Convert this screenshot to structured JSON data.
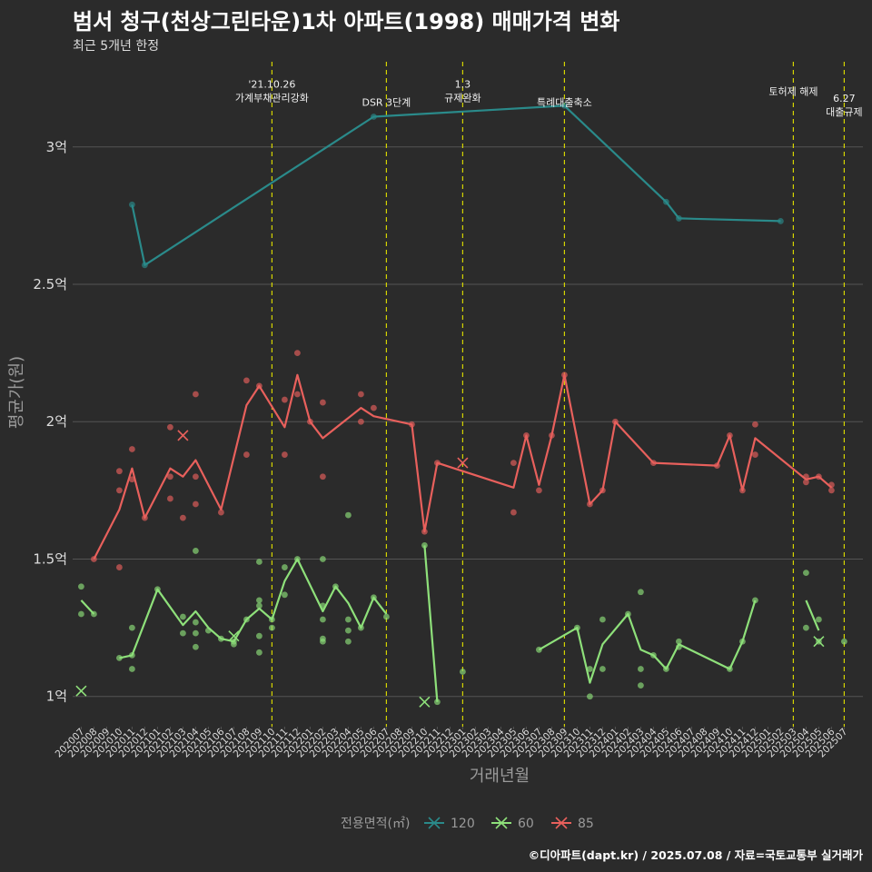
{
  "title": "범서 청구(천상그린타운)1차 아파트(1998) 매매가격 변화",
  "subtitle": "최근 5개년 한정",
  "caption": "©디아파트(dapt.kr) / 2025.07.08 / 자료=국토교통부 실거래가",
  "colors": {
    "background": "#2b2b2b",
    "grid": "#555555",
    "text": "#dddddd",
    "vline": "#d4d400",
    "s120": "#2a8a8a",
    "s60": "#8ee07a",
    "s85": "#e8605c"
  },
  "chart_data": {
    "type": "line",
    "xlabel": "거래년월",
    "ylabel": "평균가(원)",
    "categories": [
      "202007",
      "202008",
      "202009",
      "202010",
      "202011",
      "202012",
      "202101",
      "202102",
      "202103",
      "202104",
      "202105",
      "202106",
      "202107",
      "202108",
      "202109",
      "202110",
      "202111",
      "202112",
      "202201",
      "202202",
      "202203",
      "202204",
      "202205",
      "202206",
      "202207",
      "202208",
      "202209",
      "202210",
      "202211",
      "202212",
      "202301",
      "202302",
      "202303",
      "202304",
      "202305",
      "202306",
      "202307",
      "202308",
      "202309",
      "202310",
      "202311",
      "202312",
      "202401",
      "202402",
      "202403",
      "202404",
      "202405",
      "202406",
      "202407",
      "202408",
      "202409",
      "202410",
      "202411",
      "202412",
      "202501",
      "202502",
      "202503",
      "202504",
      "202505",
      "202506",
      "202507"
    ],
    "y_ticks": [
      {
        "value": 1.0,
        "label": "1억"
      },
      {
        "value": 1.5,
        "label": "1.5억"
      },
      {
        "value": 2.0,
        "label": "2억"
      },
      {
        "value": 2.5,
        "label": "2.5억"
      },
      {
        "value": 3.0,
        "label": "3억"
      }
    ],
    "ylim": [
      0.89,
      3.31
    ],
    "grid": true,
    "legend": {
      "title": "전용면적(㎡)",
      "position": "bottom"
    },
    "series": [
      {
        "name": "120",
        "color": "#2a8a8a",
        "line": [
          [
            4,
            2.79
          ],
          [
            5,
            2.57
          ],
          [
            23,
            3.11
          ],
          [
            38,
            3.15
          ],
          [
            46,
            2.8
          ],
          [
            47,
            2.74
          ],
          [
            55,
            2.73
          ]
        ],
        "points": [
          [
            4,
            2.79
          ],
          [
            5,
            2.57
          ],
          [
            23,
            3.11
          ],
          [
            38,
            3.15
          ],
          [
            46,
            2.8
          ],
          [
            47,
            2.74
          ],
          [
            55,
            2.73
          ]
        ],
        "cancelled": []
      },
      {
        "name": "60",
        "color": "#8ee07a",
        "line": [
          [
            [
              0,
              1.35
            ],
            [
              1,
              1.3
            ]
          ],
          [
            [
              3,
              1.14
            ],
            [
              4,
              1.15
            ],
            [
              6,
              1.39
            ],
            [
              8,
              1.26
            ],
            [
              9,
              1.31
            ],
            [
              10,
              1.25
            ],
            [
              11,
              1.21
            ],
            [
              12,
              1.2
            ],
            [
              13,
              1.28
            ],
            [
              14,
              1.32
            ],
            [
              15,
              1.28
            ],
            [
              16,
              1.42
            ],
            [
              17,
              1.5
            ],
            [
              19,
              1.31
            ],
            [
              20,
              1.4
            ],
            [
              21,
              1.34
            ],
            [
              22,
              1.25
            ],
            [
              23,
              1.36
            ],
            [
              24,
              1.3
            ]
          ],
          [
            [
              27,
              1.55
            ],
            [
              28,
              0.98
            ]
          ],
          [
            [
              36,
              1.17
            ],
            [
              39,
              1.25
            ],
            [
              40,
              1.05
            ],
            [
              41,
              1.19
            ],
            [
              43,
              1.3
            ],
            [
              44,
              1.17
            ],
            [
              45,
              1.15
            ],
            [
              46,
              1.1
            ],
            [
              47,
              1.19
            ],
            [
              51,
              1.1
            ],
            [
              52,
              1.2
            ],
            [
              53,
              1.35
            ]
          ],
          [
            [
              57,
              1.35
            ],
            [
              58,
              1.24
            ]
          ]
        ],
        "points": [
          [
            0,
            1.4
          ],
          [
            0,
            1.3
          ],
          [
            1,
            1.3
          ],
          [
            3,
            1.14
          ],
          [
            4,
            1.15
          ],
          [
            4,
            1.25
          ],
          [
            4,
            1.1
          ],
          [
            6,
            1.39
          ],
          [
            8,
            1.29
          ],
          [
            8,
            1.23
          ],
          [
            9,
            1.27
          ],
          [
            9,
            1.23
          ],
          [
            9,
            1.18
          ],
          [
            9,
            1.53
          ],
          [
            10,
            1.24
          ],
          [
            11,
            1.21
          ],
          [
            12,
            1.2
          ],
          [
            12,
            1.19
          ],
          [
            13,
            1.28
          ],
          [
            14,
            1.35
          ],
          [
            14,
            1.33
          ],
          [
            14,
            1.22
          ],
          [
            14,
            1.16
          ],
          [
            14,
            1.49
          ],
          [
            15,
            1.28
          ],
          [
            15,
            1.25
          ],
          [
            16,
            1.37
          ],
          [
            16,
            1.47
          ],
          [
            17,
            1.5
          ],
          [
            19,
            1.33
          ],
          [
            19,
            1.28
          ],
          [
            19,
            1.21
          ],
          [
            19,
            1.2
          ],
          [
            19,
            1.5
          ],
          [
            20,
            1.4
          ],
          [
            21,
            1.66
          ],
          [
            21,
            1.28
          ],
          [
            21,
            1.24
          ],
          [
            21,
            1.2
          ],
          [
            22,
            1.25
          ],
          [
            23,
            1.36
          ],
          [
            24,
            1.29
          ],
          [
            27,
            1.55
          ],
          [
            28,
            0.98
          ],
          [
            30,
            1.09
          ],
          [
            36,
            1.17
          ],
          [
            39,
            1.25
          ],
          [
            40,
            1.1
          ],
          [
            40,
            1.0
          ],
          [
            41,
            1.28
          ],
          [
            41,
            1.1
          ],
          [
            43,
            1.3
          ],
          [
            44,
            1.38
          ],
          [
            44,
            1.1
          ],
          [
            44,
            1.04
          ],
          [
            45,
            1.15
          ],
          [
            46,
            1.1
          ],
          [
            47,
            1.2
          ],
          [
            47,
            1.18
          ],
          [
            51,
            1.1
          ],
          [
            52,
            1.2
          ],
          [
            53,
            1.35
          ],
          [
            57,
            1.45
          ],
          [
            57,
            1.25
          ],
          [
            58,
            1.28
          ],
          [
            58,
            1.2
          ],
          [
            60,
            1.2
          ]
        ],
        "cancelled": [
          [
            0,
            1.02
          ],
          [
            12,
            1.22
          ],
          [
            27,
            0.98
          ],
          [
            58,
            1.2
          ]
        ]
      },
      {
        "name": "85",
        "color": "#e8605c",
        "line": [
          [
            1,
            1.5
          ],
          [
            3,
            1.68
          ],
          [
            4,
            1.83
          ],
          [
            5,
            1.65
          ],
          [
            7,
            1.83
          ],
          [
            8,
            1.8
          ],
          [
            9,
            1.86
          ],
          [
            11,
            1.68
          ],
          [
            13,
            2.06
          ],
          [
            14,
            2.13
          ],
          [
            16,
            1.98
          ],
          [
            17,
            2.17
          ],
          [
            18,
            2.0
          ],
          [
            19,
            1.94
          ],
          [
            22,
            2.05
          ],
          [
            23,
            2.02
          ],
          [
            26,
            1.99
          ],
          [
            27,
            1.6
          ],
          [
            28,
            1.85
          ],
          [
            34,
            1.76
          ],
          [
            35,
            1.95
          ],
          [
            36,
            1.77
          ],
          [
            37,
            1.95
          ],
          [
            38,
            2.17
          ],
          [
            40,
            1.7
          ],
          [
            41,
            1.75
          ],
          [
            42,
            2.0
          ],
          [
            45,
            1.85
          ],
          [
            50,
            1.84
          ],
          [
            51,
            1.95
          ],
          [
            52,
            1.75
          ],
          [
            53,
            1.94
          ],
          [
            57,
            1.79
          ],
          [
            58,
            1.8
          ],
          [
            59,
            1.76
          ]
        ],
        "points": [
          [
            1,
            1.5
          ],
          [
            3,
            1.82
          ],
          [
            3,
            1.75
          ],
          [
            3,
            1.47
          ],
          [
            4,
            1.9
          ],
          [
            4,
            1.79
          ],
          [
            5,
            1.65
          ],
          [
            7,
            1.98
          ],
          [
            7,
            1.8
          ],
          [
            7,
            1.72
          ],
          [
            8,
            1.65
          ],
          [
            9,
            2.1
          ],
          [
            9,
            1.8
          ],
          [
            9,
            1.7
          ],
          [
            11,
            1.67
          ],
          [
            13,
            2.15
          ],
          [
            13,
            1.88
          ],
          [
            14,
            2.13
          ],
          [
            16,
            2.08
          ],
          [
            16,
            1.88
          ],
          [
            17,
            2.25
          ],
          [
            17,
            2.1
          ],
          [
            18,
            2.0
          ],
          [
            19,
            2.07
          ],
          [
            19,
            1.8
          ],
          [
            22,
            2.1
          ],
          [
            22,
            2.0
          ],
          [
            23,
            2.05
          ],
          [
            26,
            1.99
          ],
          [
            27,
            1.6
          ],
          [
            28,
            1.85
          ],
          [
            34,
            1.85
          ],
          [
            34,
            1.67
          ],
          [
            35,
            1.95
          ],
          [
            36,
            1.75
          ],
          [
            37,
            1.95
          ],
          [
            38,
            2.17
          ],
          [
            40,
            1.7
          ],
          [
            41,
            1.75
          ],
          [
            42,
            2.0
          ],
          [
            45,
            1.85
          ],
          [
            50,
            1.84
          ],
          [
            51,
            1.95
          ],
          [
            52,
            1.75
          ],
          [
            53,
            1.99
          ],
          [
            53,
            1.88
          ],
          [
            57,
            1.8
          ],
          [
            57,
            1.78
          ],
          [
            58,
            1.8
          ],
          [
            59,
            1.77
          ],
          [
            59,
            1.75
          ]
        ],
        "cancelled": [
          [
            8,
            1.95
          ],
          [
            30,
            1.85
          ]
        ]
      }
    ],
    "annotations": [
      {
        "x": 15,
        "lines": [
          "'21.10.26",
          "가계부채관리강화"
        ],
        "text_y": 3.215
      },
      {
        "x": 24,
        "lines": [
          "DSR 3단계"
        ],
        "text_y": 3.15
      },
      {
        "x": 30,
        "lines": [
          "1.3",
          "규제완화"
        ],
        "text_y": 3.215
      },
      {
        "x": 38,
        "lines": [
          "특례대출축소"
        ],
        "text_y": 3.15
      },
      {
        "x": 56,
        "lines": [
          "토허제 해제"
        ],
        "text_y": 3.19
      },
      {
        "x": 60,
        "lines": [
          "6.27",
          "대출규제"
        ],
        "text_y": 3.165
      }
    ]
  }
}
